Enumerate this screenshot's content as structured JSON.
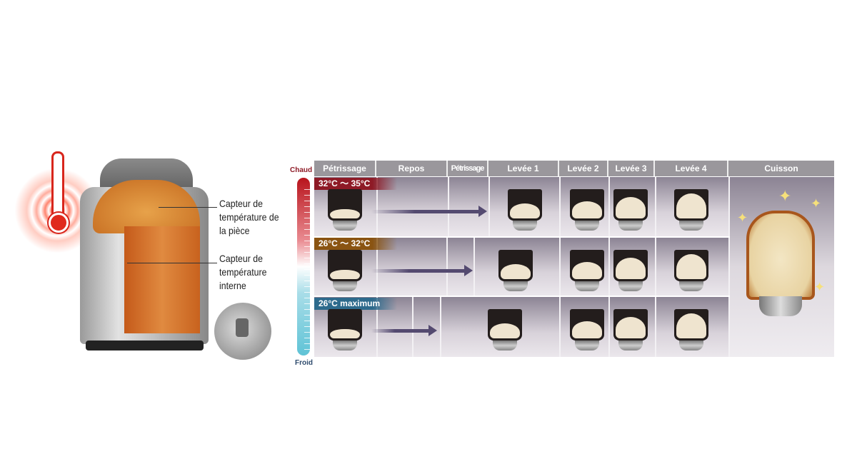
{
  "sensors": {
    "room_label": "Capteur de température de la pièce",
    "internal_label": "Capteur de température interne"
  },
  "scale": {
    "hot": "Chaud",
    "cold": "Froid",
    "colors": {
      "hot": "#b8141c",
      "cold": "#5fc3d6"
    }
  },
  "columns": [
    "Pétrissage",
    "Repos",
    "Pétrissage",
    "Levée 1",
    "Levée 2",
    "Levée 3",
    "Levée 4",
    "Cuisson"
  ],
  "rows": [
    {
      "temperature": "32°C ～ 35°C",
      "color": "#8e1a26"
    },
    {
      "temperature": "26°C ～ 32°C",
      "color": "#8a5412"
    },
    {
      "temperature": "26°C maximum",
      "color": "#2d6a8c"
    }
  ]
}
